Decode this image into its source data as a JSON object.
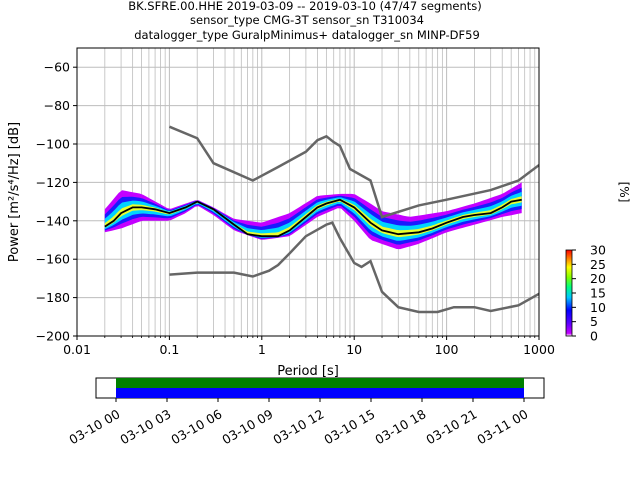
{
  "chart_data": {
    "type": "heatmap",
    "title_lines": [
      "BK.SFRE.00.HHE   2019-03-09 -- 2019-03-10  (47/47 segments)",
      "sensor_type CMG-3T sensor_sn T310034",
      "datalogger_type GuralpMinimus+ datalogger_sn MINP-DF59"
    ],
    "xlabel": "Period [s]",
    "ylabel": "Power [m²/s⁴/Hz] [dB]",
    "xscale": "log",
    "xlim": [
      0.01,
      1000
    ],
    "ylim": [
      -200,
      -50
    ],
    "x_ticks": [
      {
        "value": 0.01,
        "label": "0.01"
      },
      {
        "value": 0.1,
        "label": "0.1"
      },
      {
        "value": 1,
        "label": "1"
      },
      {
        "value": 10,
        "label": "10"
      },
      {
        "value": 100,
        "label": "100"
      },
      {
        "value": 1000,
        "label": "1000"
      }
    ],
    "y_ticks": [
      {
        "value": -60,
        "label": "−60"
      },
      {
        "value": -80,
        "label": "−80"
      },
      {
        "value": -100,
        "label": "−100"
      },
      {
        "value": -120,
        "label": "−120"
      },
      {
        "value": -140,
        "label": "−140"
      },
      {
        "value": -160,
        "label": "−160"
      },
      {
        "value": -180,
        "label": "−180"
      },
      {
        "value": -200,
        "label": "−200"
      }
    ],
    "grid": true,
    "reference_models": [
      {
        "points": [
          [
            0.1,
            -91
          ],
          [
            0.2,
            -97
          ],
          [
            0.3,
            -110
          ],
          [
            0.8,
            -119
          ],
          [
            1.5,
            -112
          ],
          [
            3,
            -104
          ],
          [
            4,
            -98
          ],
          [
            5,
            -96
          ],
          [
            6,
            -99
          ],
          [
            7,
            -101
          ],
          [
            9,
            -113
          ],
          [
            15,
            -119
          ],
          [
            20,
            -138
          ],
          [
            50,
            -132
          ],
          [
            100,
            -129
          ],
          [
            300,
            -124
          ],
          [
            600,
            -119
          ],
          [
            1000,
            -111
          ]
        ]
      },
      {
        "points": [
          [
            0.1,
            -168
          ],
          [
            0.2,
            -167
          ],
          [
            0.5,
            -167
          ],
          [
            0.8,
            -169
          ],
          [
            1.2,
            -166
          ],
          [
            1.5,
            -163
          ],
          [
            2,
            -157
          ],
          [
            3,
            -148
          ],
          [
            5,
            -142
          ],
          [
            5.8,
            -141
          ],
          [
            7,
            -149
          ],
          [
            10,
            -162
          ],
          [
            12,
            -164
          ],
          [
            15,
            -161
          ],
          [
            20,
            -177
          ],
          [
            30,
            -185
          ],
          [
            50,
            -187.5
          ],
          [
            80,
            -187.5
          ],
          [
            120,
            -185
          ],
          [
            200,
            -185
          ],
          [
            300,
            -187
          ],
          [
            600,
            -184
          ],
          [
            1000,
            -178
          ]
        ]
      }
    ],
    "mode_curve": [
      [
        0.02,
        -143
      ],
      [
        0.025,
        -140
      ],
      [
        0.03,
        -136
      ],
      [
        0.04,
        -133
      ],
      [
        0.05,
        -133
      ],
      [
        0.07,
        -134
      ],
      [
        0.1,
        -136
      ],
      [
        0.15,
        -133
      ],
      [
        0.2,
        -130
      ],
      [
        0.3,
        -134
      ],
      [
        0.5,
        -142
      ],
      [
        0.7,
        -147
      ],
      [
        1,
        -148
      ],
      [
        1.5,
        -148
      ],
      [
        2,
        -145
      ],
      [
        3,
        -138
      ],
      [
        4,
        -133
      ],
      [
        5,
        -131
      ],
      [
        7,
        -129
      ],
      [
        10,
        -133
      ],
      [
        15,
        -141
      ],
      [
        20,
        -145
      ],
      [
        30,
        -147
      ],
      [
        50,
        -146
      ],
      [
        70,
        -144
      ],
      [
        100,
        -141
      ],
      [
        150,
        -138
      ],
      [
        200,
        -137
      ],
      [
        300,
        -136
      ],
      [
        400,
        -133
      ],
      [
        500,
        -130
      ],
      [
        650,
        -129
      ]
    ],
    "spread_upper": [
      [
        0.02,
        -134
      ],
      [
        0.03,
        -124
      ],
      [
        0.05,
        -126
      ],
      [
        0.1,
        -134
      ],
      [
        0.15,
        -131
      ],
      [
        0.2,
        -129
      ],
      [
        0.3,
        -133
      ],
      [
        0.5,
        -139
      ],
      [
        1,
        -141
      ],
      [
        2,
        -136
      ],
      [
        4,
        -127
      ],
      [
        7,
        -126
      ],
      [
        10,
        -126
      ],
      [
        15,
        -131
      ],
      [
        20,
        -135
      ],
      [
        40,
        -138
      ],
      [
        100,
        -135
      ],
      [
        200,
        -131
      ],
      [
        400,
        -126
      ],
      [
        650,
        -120
      ]
    ],
    "spread_lower": [
      [
        0.02,
        -146
      ],
      [
        0.03,
        -144
      ],
      [
        0.05,
        -140
      ],
      [
        0.1,
        -140
      ],
      [
        0.15,
        -136
      ],
      [
        0.2,
        -132
      ],
      [
        0.3,
        -137
      ],
      [
        0.5,
        -145
      ],
      [
        1,
        -150
      ],
      [
        2,
        -148
      ],
      [
        4,
        -138
      ],
      [
        7,
        -133
      ],
      [
        10,
        -140
      ],
      [
        15,
        -150
      ],
      [
        30,
        -155
      ],
      [
        50,
        -152
      ],
      [
        100,
        -146
      ],
      [
        200,
        -142
      ],
      [
        400,
        -138
      ],
      [
        650,
        -136
      ]
    ],
    "colorbar": {
      "label": "[%]",
      "min": 0,
      "max": 30,
      "ticks": [
        0,
        5,
        10,
        15,
        20,
        25,
        30
      ],
      "colors": [
        "#ffffff",
        "#c400ff",
        "#5a00ff",
        "#0000ff",
        "#00c8ff",
        "#00ff80",
        "#7fff00",
        "#ffff00",
        "#ff8000",
        "#ff0000"
      ]
    },
    "coverage": {
      "tick_labels": [
        "03-10 00",
        "03-10 03",
        "03-10 06",
        "03-10 09",
        "03-10 12",
        "03-10 15",
        "03-10 18",
        "03-10 21",
        "03-11 00"
      ],
      "bar_colors": [
        "#008000",
        "#0000ff"
      ]
    }
  }
}
